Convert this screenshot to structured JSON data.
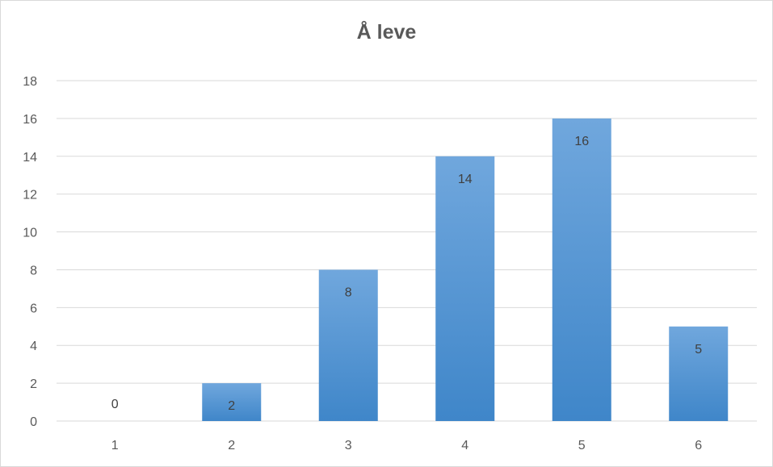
{
  "chart_data": {
    "type": "bar",
    "title": "Å leve",
    "xlabel": "",
    "ylabel": "",
    "categories": [
      "1",
      "2",
      "3",
      "4",
      "5",
      "6"
    ],
    "values": [
      0,
      2,
      8,
      14,
      16,
      5
    ],
    "data_labels": [
      "0",
      "2",
      "8",
      "14",
      "16",
      "5"
    ],
    "ylim": [
      0,
      18
    ],
    "y_ticks": [
      "0",
      "2",
      "4",
      "6",
      "8",
      "10",
      "12",
      "14",
      "16",
      "18"
    ],
    "grid": true,
    "legend": "none",
    "bar_color": "#5b9bd5",
    "bar_color_top": "#70a7dd",
    "bar_color_bottom": "#3f86c9",
    "grid_color": "#d9d9d9"
  }
}
